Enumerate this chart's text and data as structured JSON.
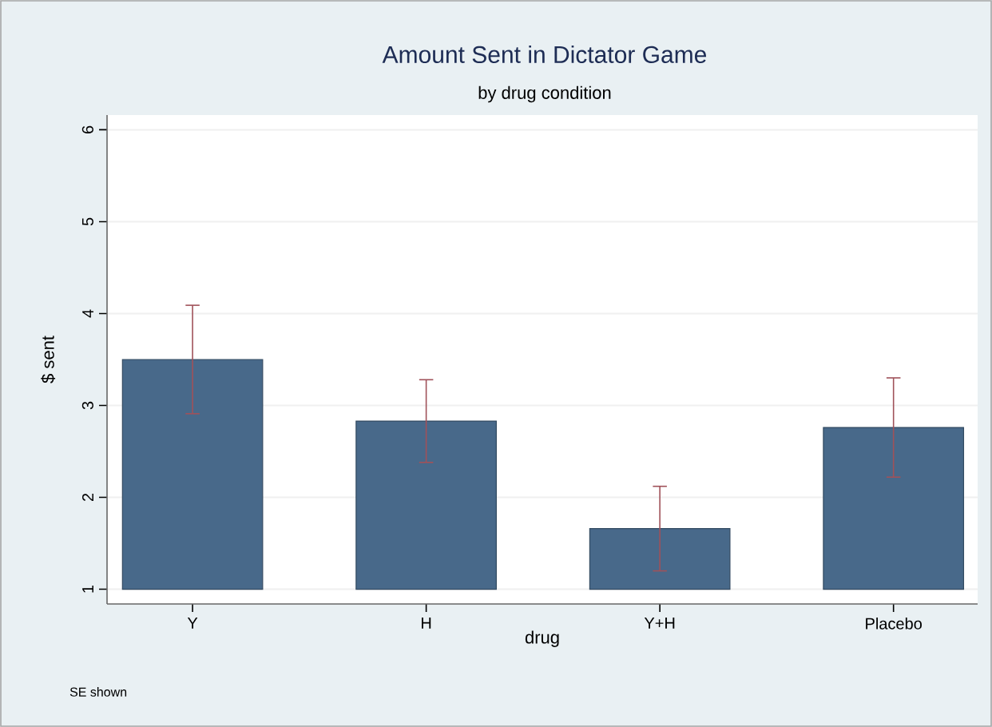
{
  "chart_data": {
    "type": "bar",
    "title": "Amount Sent in Dictator Game",
    "subtitle": "by drug condition",
    "xlabel": "drug",
    "ylabel": "$ sent",
    "categories": [
      "Y",
      "H",
      "Y+H",
      "Placebo"
    ],
    "base": [
      1,
      1,
      1,
      1
    ],
    "values": [
      2.5,
      1.83,
      0.66,
      1.76
    ],
    "errors": [
      0.59,
      0.45,
      0.46,
      0.54
    ],
    "color": "#48698a",
    "ylim": [
      0.84,
      6.16
    ],
    "yticks": [
      1,
      2,
      3,
      4,
      5,
      6
    ],
    "grid": "y",
    "annotations": [
      "SE shown"
    ]
  }
}
